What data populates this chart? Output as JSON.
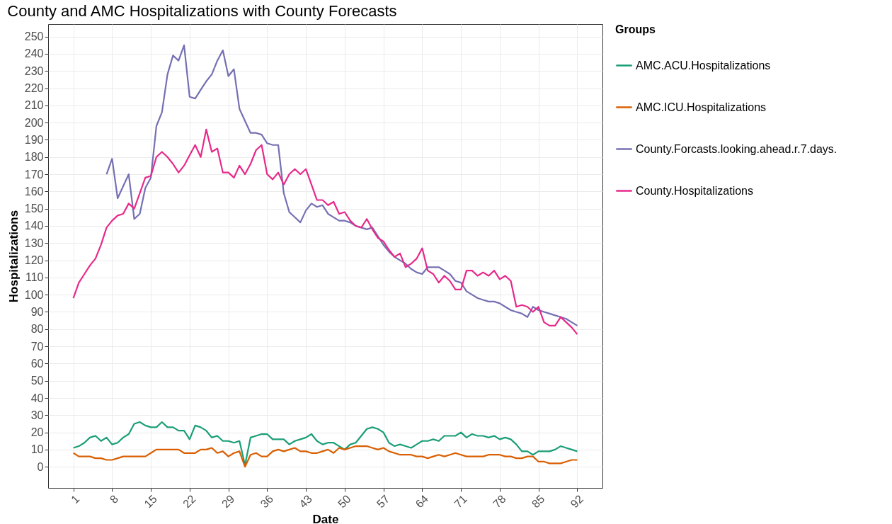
{
  "chart_data": {
    "type": "line",
    "title": "County and AMC Hospitalizations with County Forecasts",
    "xlabel": "Date",
    "ylabel": "Hospitalizations",
    "legend_title": "Groups",
    "x": [
      1,
      2,
      3,
      4,
      5,
      6,
      7,
      8,
      9,
      10,
      11,
      12,
      13,
      14,
      15,
      16,
      17,
      18,
      19,
      20,
      21,
      22,
      23,
      24,
      25,
      26,
      27,
      28,
      29,
      30,
      31,
      32,
      33,
      34,
      35,
      36,
      37,
      38,
      39,
      40,
      41,
      42,
      43,
      44,
      45,
      46,
      47,
      48,
      49,
      50,
      51,
      52,
      53,
      54,
      55,
      56,
      57,
      58,
      59,
      60,
      61,
      62,
      63,
      64,
      65,
      66,
      67,
      68,
      69,
      70,
      71,
      72,
      73,
      74,
      75,
      76,
      77,
      78,
      79,
      80,
      81,
      82,
      83,
      84,
      85,
      86,
      87,
      88,
      89,
      90,
      91,
      92
    ],
    "series": [
      {
        "name": "AMC.ACU.Hospitalizations",
        "color": "#1b9e77",
        "values": [
          11,
          12,
          14,
          17,
          18,
          15,
          17,
          13,
          14,
          17,
          19,
          25,
          26,
          24,
          23,
          23,
          26,
          23,
          23,
          21,
          21,
          16,
          24,
          23,
          21,
          17,
          18,
          15,
          15,
          14,
          15,
          1,
          17,
          18,
          19,
          19,
          16,
          16,
          16,
          13,
          15,
          16,
          17,
          19,
          15,
          13,
          14,
          14,
          12,
          10,
          13,
          14,
          18,
          22,
          23,
          22,
          20,
          14,
          12,
          13,
          12,
          11,
          13,
          15,
          15,
          16,
          15,
          18,
          18,
          18,
          20,
          17,
          19,
          18,
          18,
          17,
          18,
          16,
          17,
          16,
          13,
          9,
          9,
          7,
          9,
          9,
          9,
          10,
          12,
          11,
          10,
          9
        ]
      },
      {
        "name": "AMC.ICU.Hospitalizations",
        "color": "#d95f02",
        "values": [
          8,
          6,
          6,
          6,
          5,
          5,
          4,
          4,
          5,
          6,
          6,
          6,
          6,
          6,
          8,
          10,
          10,
          10,
          10,
          10,
          8,
          8,
          8,
          10,
          10,
          11,
          8,
          9,
          6,
          8,
          9,
          0,
          7,
          8,
          6,
          6,
          9,
          10,
          9,
          10,
          11,
          9,
          9,
          8,
          8,
          9,
          10,
          8,
          11,
          10,
          11,
          12,
          12,
          12,
          11,
          10,
          11,
          9,
          8,
          7,
          7,
          7,
          6,
          6,
          5,
          6,
          7,
          6,
          7,
          8,
          7,
          6,
          6,
          6,
          6,
          7,
          7,
          7,
          6,
          6,
          5,
          5,
          6,
          6,
          3,
          3,
          2,
          2,
          2,
          3,
          4,
          4
        ]
      },
      {
        "name": "County.Forcasts.looking.ahead.r.7.days.",
        "color": "#7570b3",
        "x": [
          7,
          8,
          9,
          10,
          11,
          12,
          13,
          14,
          15,
          16,
          17,
          18,
          19,
          20,
          21,
          22,
          23,
          24,
          25,
          26,
          27,
          28,
          29,
          30,
          31,
          32,
          33,
          34,
          35,
          36,
          37,
          38,
          39,
          40,
          41,
          42,
          43,
          44,
          45,
          46,
          47,
          48,
          49,
          50,
          51,
          52,
          53,
          54,
          55,
          56,
          57,
          58,
          59,
          60,
          61,
          62,
          63,
          64,
          65,
          66,
          67,
          68,
          69,
          70,
          71,
          72,
          73,
          74,
          75,
          76,
          77,
          78,
          79,
          80,
          81,
          82,
          83,
          84,
          85,
          86,
          87,
          88,
          89,
          90,
          91,
          92
        ],
        "values": [
          170,
          179,
          156,
          163,
          170,
          144,
          147,
          162,
          168,
          198,
          206,
          228,
          239,
          236,
          245,
          215,
          214,
          219,
          224,
          228,
          236,
          242,
          227,
          231,
          208,
          201,
          194,
          194,
          193,
          188,
          187,
          187,
          159,
          148,
          145,
          142,
          149,
          153,
          151,
          152,
          147,
          145,
          143,
          143,
          142,
          140,
          139,
          138,
          139,
          134,
          129,
          125,
          122,
          120,
          118,
          115,
          113,
          112,
          116,
          116,
          116,
          114,
          112,
          108,
          107,
          102,
          100,
          98,
          97,
          96,
          96,
          95,
          93,
          91,
          90,
          89,
          87,
          93,
          91,
          90,
          89,
          88,
          87,
          86,
          84,
          82
        ]
      },
      {
        "name": "County.Hospitalizations",
        "color": "#e7298a",
        "values": [
          98,
          107,
          112,
          117,
          121,
          129,
          139,
          143,
          146,
          147,
          153,
          150,
          159,
          168,
          169,
          180,
          183,
          180,
          176,
          171,
          175,
          181,
          187,
          180,
          196,
          183,
          185,
          171,
          171,
          168,
          175,
          170,
          176,
          184,
          187,
          170,
          167,
          171,
          164,
          170,
          173,
          170,
          173,
          164,
          155,
          155,
          152,
          154,
          147,
          148,
          143,
          140,
          139,
          144,
          138,
          133,
          131,
          126,
          122,
          124,
          116,
          118,
          121,
          127,
          114,
          112,
          107,
          111,
          108,
          103,
          103,
          114,
          114,
          111,
          113,
          111,
          114,
          109,
          111,
          108,
          93,
          94,
          93,
          90,
          93,
          84,
          82,
          82,
          87,
          84,
          81,
          77
        ]
      }
    ],
    "xlim": [
      -3.55,
      96.55
    ],
    "xticks": [
      1,
      8,
      15,
      22,
      29,
      36,
      43,
      50,
      57,
      64,
      71,
      78,
      85,
      92
    ],
    "ylim": [
      -12.25,
      257.25
    ],
    "yticks": [
      0,
      10,
      20,
      30,
      40,
      50,
      60,
      70,
      80,
      90,
      100,
      110,
      120,
      130,
      140,
      150,
      160,
      170,
      180,
      190,
      200,
      210,
      220,
      230,
      240,
      250
    ],
    "grid": true,
    "legend": "right",
    "line_style": "solid",
    "marker": "none"
  }
}
